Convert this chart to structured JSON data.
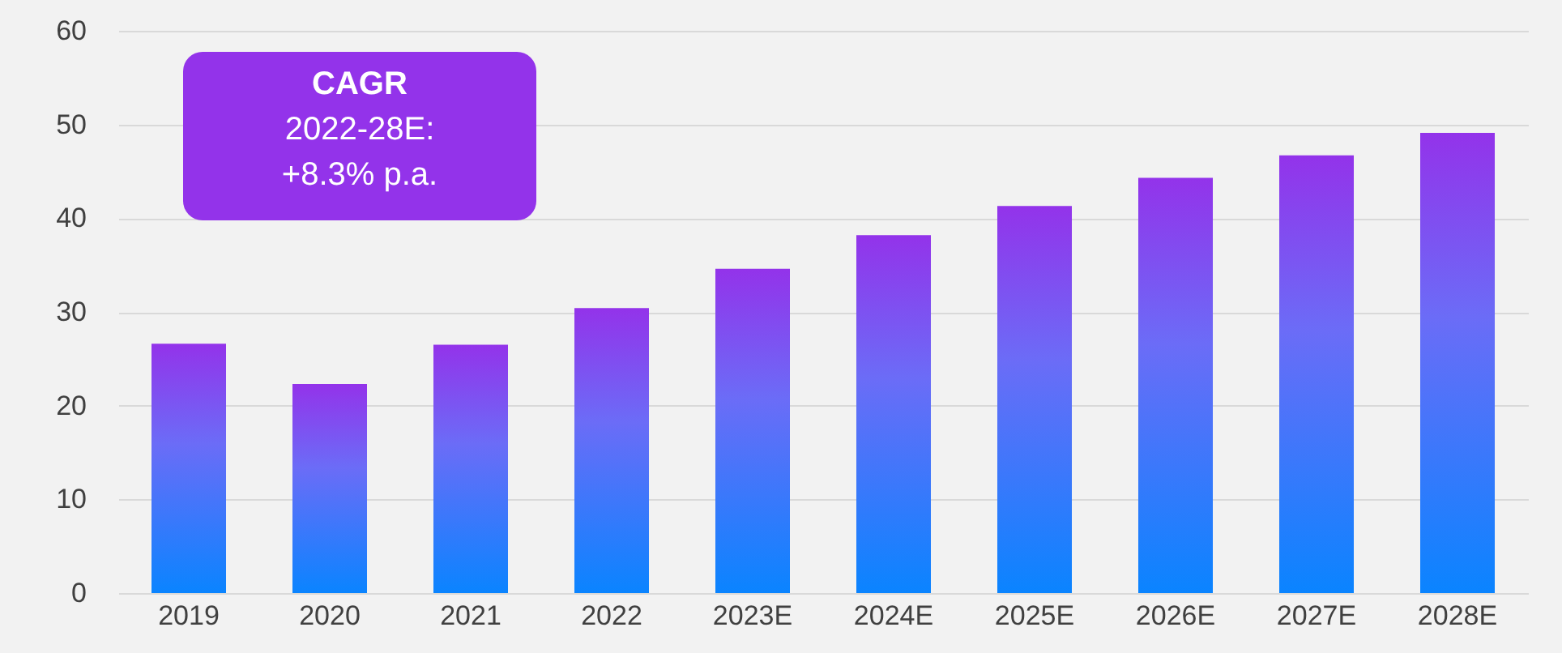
{
  "chart_data": {
    "type": "bar",
    "categories": [
      "2019",
      "2020",
      "2021",
      "2022",
      "2023E",
      "2024E",
      "2025E",
      "2026E",
      "2027E",
      "2028E"
    ],
    "series": [
      {
        "color": "#9333ea",
        "values": [
          26.6,
          22.3,
          26.5,
          30.4,
          34.6,
          38.2,
          41.3,
          44.3,
          46.7,
          49.1
        ]
      }
    ],
    "ylim": [
      0,
      60
    ],
    "yticks": [
      0,
      10,
      20,
      30,
      40,
      50,
      60
    ],
    "grid": "y",
    "annotations": [
      "CAGR",
      "2022-28E:",
      "+8.3% p.a."
    ]
  }
}
